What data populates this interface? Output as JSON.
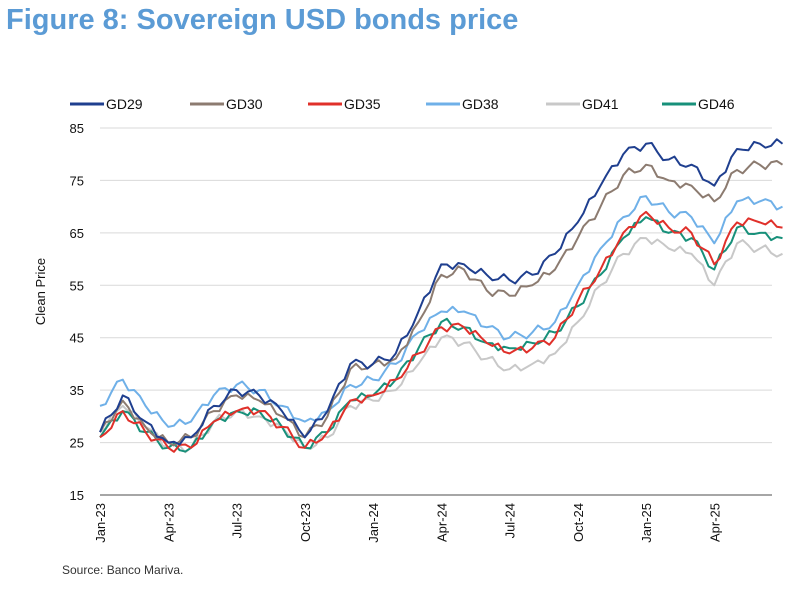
{
  "title": "Figure 8: Sovereign USD bonds price",
  "source": "Source: Banco Mariva.",
  "chart_data": {
    "type": "line",
    "title": "Figure 8: Sovereign USD bonds price",
    "xlabel": "",
    "ylabel": "Clean Price",
    "ylim": [
      15,
      85
    ],
    "yticks": [
      15,
      25,
      35,
      45,
      55,
      65,
      75,
      85
    ],
    "xtick_labels": [
      "Jan-23",
      "Apr-23",
      "Jul-23",
      "Oct-23",
      "Jan-24",
      "Apr-24",
      "Jul-24",
      "Oct-24",
      "Jan-25",
      "Apr-25"
    ],
    "grid": "horizontal",
    "legend": "top",
    "x": [
      "2023-01",
      "2023-02",
      "2023-03",
      "2023-04",
      "2023-05",
      "2023-06",
      "2023-07",
      "2023-08",
      "2023-09",
      "2023-10",
      "2023-11",
      "2023-12",
      "2024-01",
      "2024-02",
      "2024-03",
      "2024-04",
      "2024-05",
      "2024-06",
      "2024-07",
      "2024-08",
      "2024-09",
      "2024-10",
      "2024-11",
      "2024-12",
      "2025-01",
      "2025-02",
      "2025-03",
      "2025-04",
      "2025-05",
      "2025-06",
      "2025-07"
    ],
    "series": [
      {
        "name": "GD29",
        "color": "#1f3f8f",
        "values": [
          27,
          34,
          29,
          25,
          26,
          32,
          35,
          34,
          31,
          26,
          31,
          40,
          40,
          42,
          50,
          59,
          59,
          57,
          56,
          57,
          61,
          67,
          74,
          80,
          82,
          79,
          78,
          74,
          81,
          82,
          82
        ]
      },
      {
        "name": "GD30",
        "color": "#8c7b70",
        "values": [
          27,
          33,
          28,
          25,
          26,
          31,
          34,
          33,
          30,
          26,
          30,
          39,
          40,
          41,
          48,
          57,
          58,
          54,
          53,
          55,
          58,
          64,
          70,
          76,
          78,
          75,
          74,
          71,
          77,
          78,
          78
        ]
      },
      {
        "name": "GD35",
        "color": "#e0302a",
        "values": [
          26,
          31,
          27,
          24,
          24,
          29,
          31,
          31,
          28,
          24,
          27,
          33,
          34,
          37,
          42,
          47,
          47,
          44,
          42,
          43,
          45,
          52,
          58,
          65,
          69,
          66,
          65,
          59,
          67,
          67,
          66
        ]
      },
      {
        "name": "GD38",
        "color": "#6fb0e8",
        "values": [
          32,
          37,
          32,
          28,
          29,
          34,
          36,
          35,
          32,
          29,
          31,
          36,
          37,
          40,
          46,
          50,
          50,
          47,
          45,
          46,
          48,
          55,
          62,
          68,
          72,
          69,
          68,
          63,
          71,
          71,
          70
        ]
      },
      {
        "name": "GD41",
        "color": "#c8c8c8",
        "values": [
          27,
          32,
          28,
          24,
          24,
          29,
          31,
          30,
          28,
          24,
          26,
          32,
          33,
          35,
          40,
          45,
          44,
          41,
          39,
          40,
          42,
          48,
          55,
          61,
          64,
          62,
          61,
          55,
          63,
          62,
          61
        ]
      },
      {
        "name": "GD46",
        "color": "#17907a",
        "values": [
          26,
          31,
          27,
          24,
          24,
          29,
          31,
          31,
          28,
          24,
          27,
          33,
          34,
          37,
          43,
          48,
          47,
          44,
          43,
          44,
          46,
          51,
          57,
          64,
          68,
          65,
          64,
          58,
          66,
          65,
          64
        ]
      }
    ]
  }
}
